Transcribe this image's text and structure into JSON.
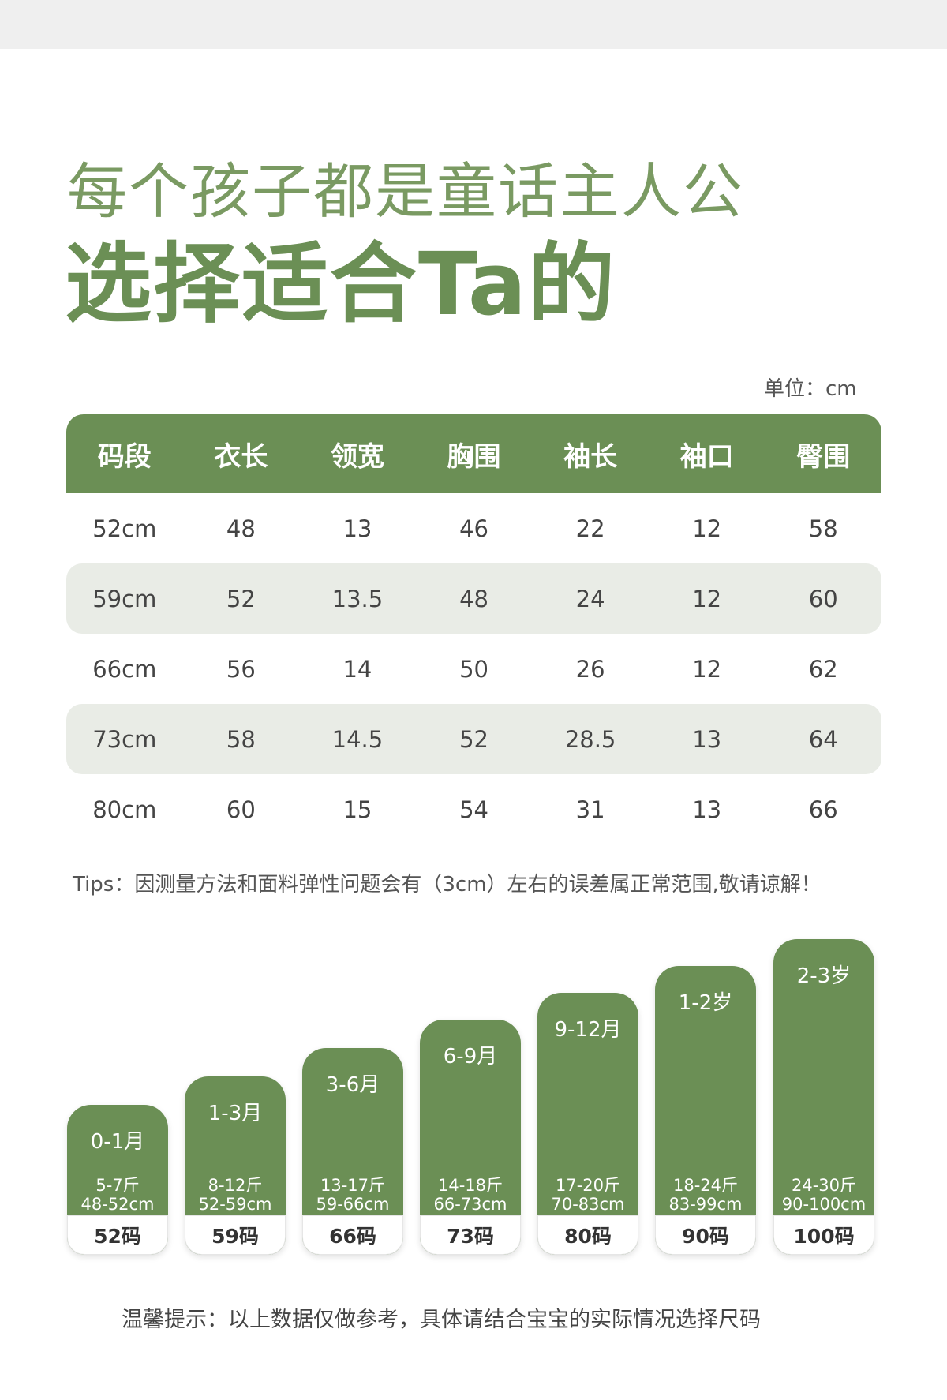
{
  "heading": {
    "line1": "每个孩子都是童话主人公",
    "line2": "选择适合Ta的"
  },
  "unit_label": "单位：cm",
  "table": {
    "headers": [
      "码段",
      "衣长",
      "领宽",
      "胸围",
      "袖长",
      "袖口",
      "臀围"
    ],
    "rows": [
      [
        "52cm",
        "48",
        "13",
        "46",
        "22",
        "12",
        "58"
      ],
      [
        "59cm",
        "52",
        "13.5",
        "48",
        "24",
        "12",
        "60"
      ],
      [
        "66cm",
        "56",
        "14",
        "50",
        "26",
        "12",
        "62"
      ],
      [
        "73cm",
        "58",
        "14.5",
        "52",
        "28.5",
        "13",
        "64"
      ],
      [
        "80cm",
        "60",
        "15",
        "54",
        "31",
        "13",
        "66"
      ]
    ]
  },
  "tips": "Tips：因测量方法和面料弹性问题会有（3cm）左右的误差属正常范围,敬请谅解！",
  "size_guide": [
    {
      "age": "0-1月",
      "weight": "5-7斤",
      "height": "48-52cm",
      "size": "52码"
    },
    {
      "age": "1-3月",
      "weight": "8-12斤",
      "height": "52-59cm",
      "size": "59码"
    },
    {
      "age": "3-6月",
      "weight": "13-17斤",
      "height": "59-66cm",
      "size": "66码"
    },
    {
      "age": "6-9月",
      "weight": "14-18斤",
      "height": "66-73cm",
      "size": "73码"
    },
    {
      "age": "9-12月",
      "weight": "17-20斤",
      "height": "70-83cm",
      "size": "80码"
    },
    {
      "age": "1-2岁",
      "weight": "18-24斤",
      "height": "83-99cm",
      "size": "90码"
    },
    {
      "age": "2-3岁",
      "weight": "24-30斤",
      "height": "90-100cm",
      "size": "100码"
    }
  ],
  "notice": "温馨提示：以上数据仅做参考，具体请结合宝宝的实际情况选择尺码",
  "colors": {
    "accent": "#6b8f55",
    "row_alt": "#e9ece6"
  }
}
